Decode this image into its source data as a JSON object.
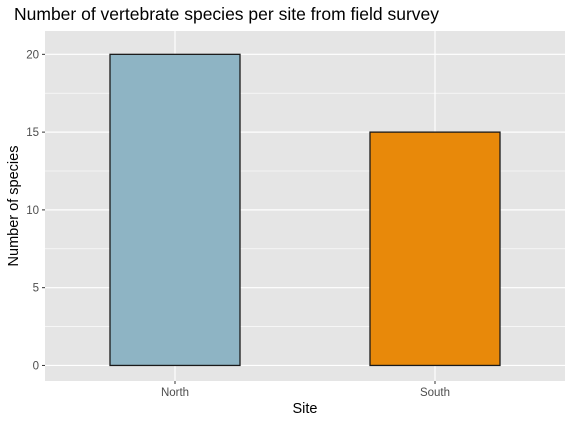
{
  "chart_data": {
    "type": "bar",
    "title": "Number of vertebrate species per site from field survey",
    "xlabel": "Site",
    "ylabel": "Number of species",
    "categories": [
      "North",
      "South"
    ],
    "values": [
      20,
      15
    ],
    "bar_colors": [
      "#8EB4C4",
      "#E8890A"
    ],
    "bar_outline_color": "#1a1a1a",
    "panel_background": "#E5E5E5",
    "grid": true,
    "grid_color": "#FFFFFF",
    "ylim": [
      -1,
      21.5
    ],
    "y_ticks": [
      0,
      5,
      10,
      15,
      20
    ],
    "legend": "none"
  }
}
